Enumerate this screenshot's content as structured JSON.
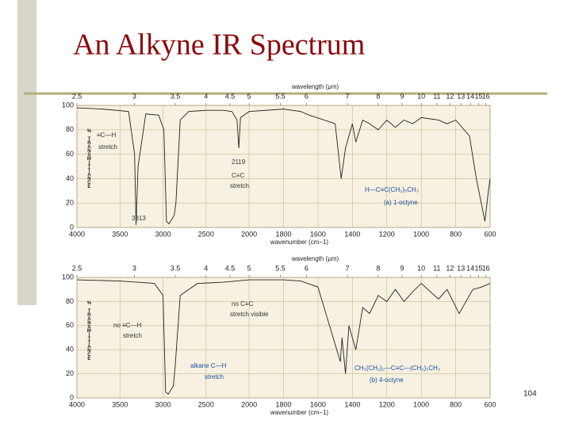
{
  "slide": {
    "title": "An Alkyne IR Spectrum",
    "page_number": "104"
  },
  "chart_data": [
    {
      "type": "line",
      "xlabel": "wavenumber (cm−1)",
      "ylabel": "% TRANSMITTANCE",
      "x2label": "wavelength (μm)",
      "xlim": [
        4000,
        600
      ],
      "xscale_break": 2000,
      "xticks": [
        4000,
        3500,
        3000,
        2500,
        2000,
        1800,
        1600,
        1400,
        1200,
        1000,
        800,
        600
      ],
      "x2ticks": [
        2.5,
        3,
        3.5,
        4,
        4.5,
        5,
        5.5,
        6,
        7,
        8,
        9,
        10,
        11,
        12,
        13,
        14,
        15,
        16
      ],
      "ylim": [
        0,
        100
      ],
      "yticks": [
        0,
        20,
        40,
        60,
        80,
        100
      ],
      "grid": true,
      "color": "#222222",
      "x": [
        4000,
        3700,
        3400,
        3330,
        3313,
        3290,
        3200,
        3050,
        2990,
        2960,
        2930,
        2870,
        2850,
        2800,
        2700,
        2500,
        2300,
        2200,
        2140,
        2119,
        2100,
        2000,
        1800,
        1700,
        1650,
        1500,
        1465,
        1440,
        1400,
        1380,
        1340,
        1300,
        1250,
        1200,
        1150,
        1100,
        1050,
        1000,
        900,
        850,
        800,
        720,
        680,
        630,
        610,
        600
      ],
      "values": [
        98,
        97,
        95,
        60,
        2,
        50,
        93,
        92,
        80,
        5,
        3,
        10,
        20,
        88,
        95,
        96,
        96,
        95,
        88,
        65,
        90,
        95,
        97,
        95,
        92,
        85,
        40,
        65,
        85,
        70,
        88,
        85,
        80,
        88,
        82,
        88,
        85,
        90,
        88,
        85,
        88,
        75,
        40,
        5,
        30,
        40
      ],
      "annotations": [
        "≡C—H",
        "stretch",
        "2119",
        "C≡C",
        "stretch",
        "3313",
        "H—C≡C(CH₂)₅CH₃",
        "(a) 1-octyne"
      ]
    },
    {
      "type": "line",
      "xlabel": "wavenumber (cm−1)",
      "ylabel": "% TRANSMITTANCE",
      "x2label": "wavelength (μm)",
      "xlim": [
        4000,
        600
      ],
      "xscale_break": 2000,
      "xticks": [
        4000,
        3500,
        3000,
        2500,
        2000,
        1800,
        1600,
        1400,
        1200,
        1000,
        800,
        600
      ],
      "x2ticks": [
        2.5,
        3,
        3.5,
        4,
        4.5,
        5,
        5.5,
        6,
        7,
        8,
        9,
        10,
        11,
        12,
        13,
        14,
        15,
        16
      ],
      "ylim": [
        0,
        100
      ],
      "yticks": [
        0,
        20,
        40,
        60,
        80,
        100
      ],
      "grid": true,
      "color": "#222222",
      "x": [
        4000,
        3500,
        3100,
        3000,
        2970,
        2940,
        2880,
        2860,
        2800,
        2600,
        2300,
        2000,
        1800,
        1700,
        1600,
        1470,
        1460,
        1440,
        1420,
        1380,
        1340,
        1300,
        1250,
        1200,
        1150,
        1100,
        1050,
        1000,
        900,
        850,
        780,
        740,
        700,
        650,
        600
      ],
      "values": [
        98,
        97,
        95,
        85,
        5,
        3,
        10,
        25,
        85,
        95,
        96,
        98,
        98,
        97,
        92,
        30,
        50,
        20,
        60,
        40,
        75,
        70,
        85,
        80,
        90,
        80,
        88,
        95,
        82,
        90,
        70,
        80,
        90,
        92,
        95
      ],
      "annotations": [
        "no ≡C—H",
        "stretch",
        "no C≡C",
        "stretch visible",
        "alkane C—H",
        "stretch",
        "CH₃(CH₂)₂—C≡C—(CH₂)₂CH₃",
        "(b) 4-octyne"
      ]
    }
  ]
}
